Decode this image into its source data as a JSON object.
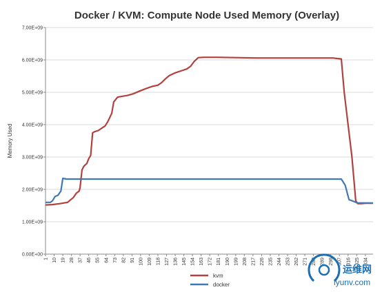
{
  "chart_data": {
    "type": "line",
    "title": "Docker / KVM: Compute Node Used Memory (Overlay)",
    "xlabel": "",
    "ylabel": "Memory Used",
    "ylim": [
      0,
      7000000000
    ],
    "y_tick_labels": [
      "0.00E+00",
      "1.00E+09",
      "2.00E+09",
      "3.00E+09",
      "4.00E+09",
      "5.00E+09",
      "6.00E+09",
      "7.00E+09"
    ],
    "y_tick_values": [
      0,
      1000000000,
      2000000000,
      3000000000,
      4000000000,
      5000000000,
      6000000000,
      7000000000
    ],
    "x_tick_labels": [
      "1",
      "10",
      "19",
      "28",
      "37",
      "46",
      "55",
      "64",
      "73",
      "82",
      "91",
      "100",
      "109",
      "118",
      "127",
      "136",
      "145",
      "154",
      "163",
      "172",
      "181",
      "190",
      "199",
      "208",
      "217",
      "226",
      "235",
      "244",
      "253",
      "262",
      "271",
      "280",
      "289",
      "298",
      "307",
      "316",
      "325",
      "334"
    ],
    "xlim": [
      1,
      342
    ],
    "grid": true,
    "legend_position": "bottom",
    "series": [
      {
        "name": "kvm",
        "color": "#b0413e",
        "x": [
          1,
          8,
          16,
          24,
          30,
          33,
          36,
          37,
          39,
          41,
          44,
          46,
          48,
          50,
          52,
          56,
          60,
          63,
          66,
          70,
          72,
          76,
          78,
          82,
          86,
          92,
          100,
          106,
          112,
          118,
          122,
          126,
          130,
          136,
          142,
          148,
          152,
          156,
          160,
          166,
          170,
          180,
          200,
          220,
          250,
          280,
          300,
          309,
          312,
          316,
          320,
          324,
          326,
          330,
          334,
          342
        ],
        "values": [
          1520000000,
          1530000000,
          1560000000,
          1600000000,
          1750000000,
          1880000000,
          1950000000,
          2050000000,
          2600000000,
          2720000000,
          2800000000,
          2950000000,
          3050000000,
          3750000000,
          3780000000,
          3820000000,
          3900000000,
          3960000000,
          4100000000,
          4350000000,
          4700000000,
          4850000000,
          4860000000,
          4880000000,
          4900000000,
          4950000000,
          5050000000,
          5120000000,
          5180000000,
          5220000000,
          5300000000,
          5420000000,
          5520000000,
          5600000000,
          5660000000,
          5720000000,
          5800000000,
          5960000000,
          6070000000,
          6080000000,
          6080000000,
          6080000000,
          6070000000,
          6060000000,
          6060000000,
          6060000000,
          6060000000,
          6030000000,
          5000000000,
          4000000000,
          3000000000,
          1650000000,
          1560000000,
          1560000000,
          1570000000,
          1570000000
        ]
      },
      {
        "name": "docker",
        "color": "#3f78b5",
        "x": [
          1,
          6,
          8,
          11,
          14,
          17,
          19,
          21,
          23,
          30,
          60,
          100,
          150,
          200,
          250,
          300,
          309,
          313,
          317,
          320,
          324,
          326,
          342
        ],
        "values": [
          1600000000,
          1600000000,
          1640000000,
          1780000000,
          1820000000,
          1950000000,
          2340000000,
          2330000000,
          2320000000,
          2320000000,
          2320000000,
          2320000000,
          2320000000,
          2320000000,
          2320000000,
          2320000000,
          2320000000,
          2130000000,
          1680000000,
          1650000000,
          1600000000,
          1580000000,
          1580000000
        ]
      }
    ]
  },
  "watermark": {
    "text_main": "运维网",
    "text_sub": "iyunv.com",
    "color": "#1a6fb5"
  }
}
